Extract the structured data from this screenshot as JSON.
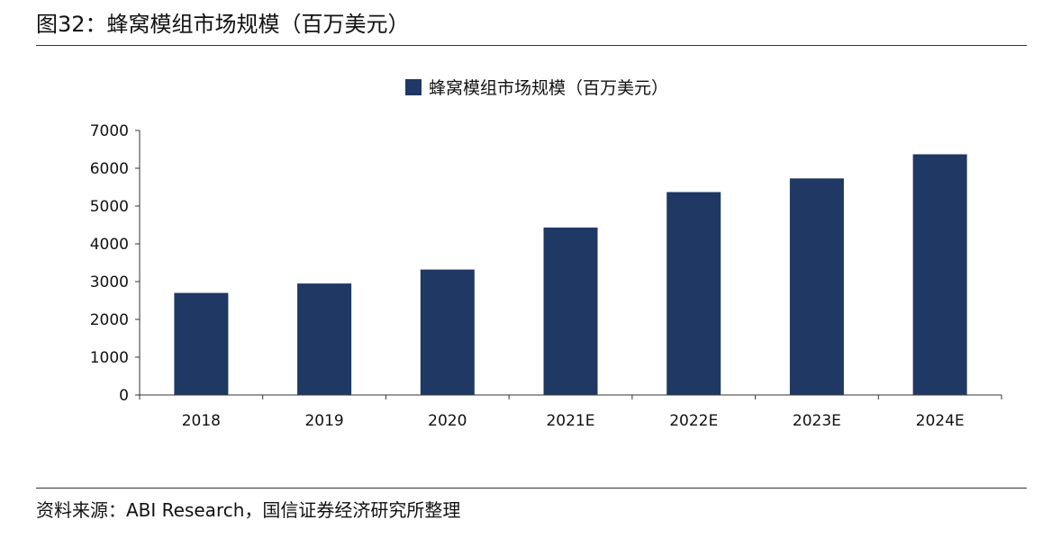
{
  "figure": {
    "title": "图32：蜂窝模组市场规模（百万美元）",
    "source": "资料来源：ABI Research，国信证券经济研究所整理"
  },
  "colors": {
    "bar": "#1f3864",
    "axis": "#333333"
  },
  "chart_data": {
    "type": "bar",
    "categories": [
      "2018",
      "2019",
      "2020",
      "2021E",
      "2022E",
      "2023E",
      "2024E"
    ],
    "series": [
      {
        "name": "蜂窝模组市场规模（百万美元）",
        "values": [
          2700,
          2950,
          3320,
          4430,
          5370,
          5730,
          6370
        ]
      }
    ],
    "ylim": [
      0,
      7000
    ],
    "yticks": [
      0,
      1000,
      2000,
      3000,
      4000,
      5000,
      6000,
      7000
    ],
    "xlabel": "",
    "ylabel": "",
    "grid": false,
    "legend_position": "top-center"
  }
}
